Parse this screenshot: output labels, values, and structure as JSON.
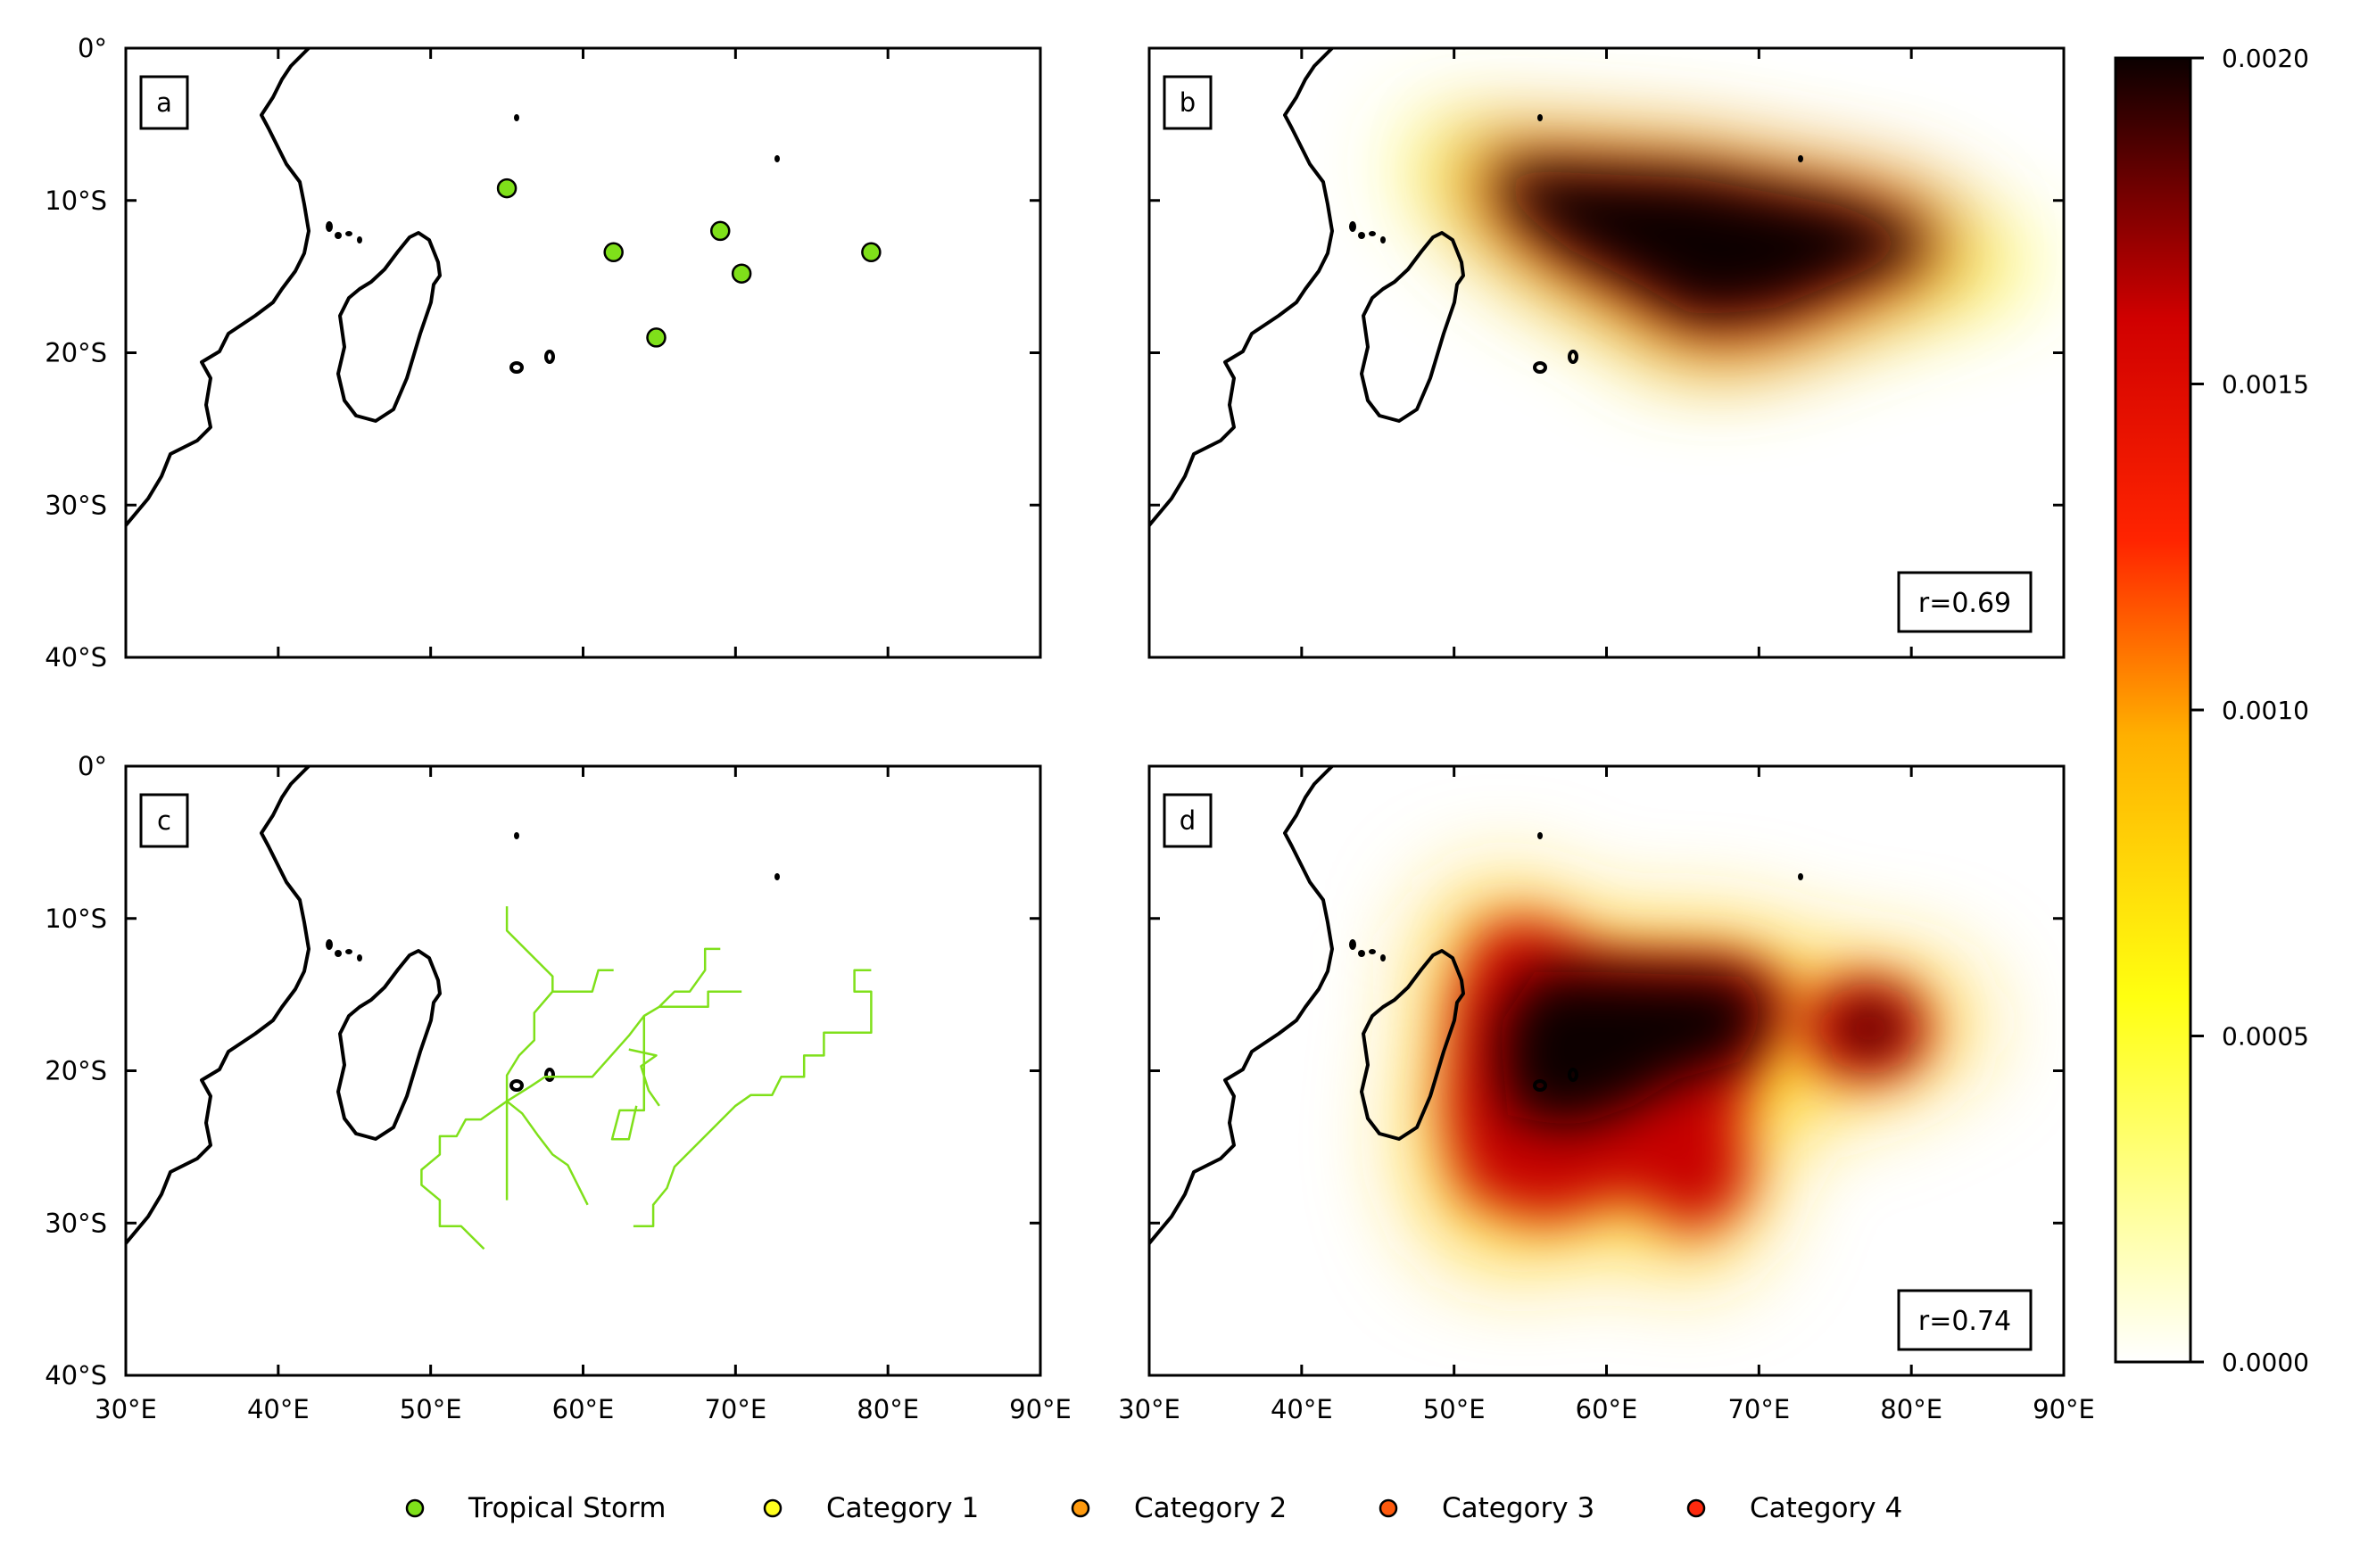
{
  "axes": {
    "lon_ticks": [
      "30°E",
      "40°E",
      "50°E",
      "60°E",
      "70°E",
      "80°E",
      "90°E"
    ],
    "lat_ticks": [
      "0°",
      "10°S",
      "20°S",
      "30°S",
      "40°S"
    ],
    "lon_range": [
      30,
      90
    ],
    "lat_range": [
      0,
      -40
    ]
  },
  "panels": {
    "a": {
      "label": "a"
    },
    "b": {
      "label": "b",
      "correlation": "r=0.69"
    },
    "c": {
      "label": "c"
    },
    "d": {
      "label": "d",
      "correlation": "r=0.74"
    }
  },
  "colorbar": {
    "ticks": [
      "0.0000",
      "0.0005",
      "0.0010",
      "0.0015",
      "0.0020"
    ],
    "range": [
      0,
      0.002
    ],
    "colormap": "hot_r"
  },
  "legend": {
    "items": [
      {
        "label": "Tropical Storm",
        "color": "#7fe01a"
      },
      {
        "label": "Category 1",
        "color": "#ffff1e"
      },
      {
        "label": "Category 2",
        "color": "#ff9a0e"
      },
      {
        "label": "Category 3",
        "color": "#ff5a0e"
      },
      {
        "label": "Category 4",
        "color": "#ff2a0e"
      }
    ]
  },
  "genesis_points": [
    {
      "lon": 55.0,
      "lat": -9.2
    },
    {
      "lon": 62.0,
      "lat": -13.4
    },
    {
      "lon": 69.0,
      "lat": -12.0
    },
    {
      "lon": 70.4,
      "lat": -14.8
    },
    {
      "lon": 78.9,
      "lat": -13.4
    },
    {
      "lon": 64.8,
      "lat": -19.0
    }
  ],
  "tracks": [
    [
      [
        55,
        -9.2
      ],
      [
        55,
        -10.8
      ],
      [
        56,
        -11.8
      ],
      [
        57,
        -12.8
      ],
      [
        58,
        -13.8
      ],
      [
        58,
        -14.8
      ],
      [
        59.5,
        -14.8
      ],
      [
        60.6,
        -14.8
      ],
      [
        61,
        -13.4
      ],
      [
        62,
        -13.4
      ]
    ],
    [
      [
        58,
        -14.8
      ],
      [
        56.8,
        -16.2
      ],
      [
        56.8,
        -18
      ],
      [
        55.8,
        -19
      ],
      [
        55,
        -20.3
      ],
      [
        55,
        -22
      ],
      [
        55,
        -24
      ],
      [
        55,
        -26
      ],
      [
        55,
        -28.5
      ]
    ],
    [
      [
        55,
        -22
      ],
      [
        53.3,
        -23.2
      ],
      [
        52.3,
        -23.2
      ],
      [
        51.7,
        -24.3
      ],
      [
        50.6,
        -24.3
      ],
      [
        50.6,
        -25.5
      ],
      [
        49.4,
        -26.5
      ],
      [
        49.4,
        -27.5
      ],
      [
        50.6,
        -28.5
      ],
      [
        50.6,
        -30.2
      ],
      [
        52,
        -30.2
      ],
      [
        53.5,
        -31.7
      ]
    ],
    [
      [
        55,
        -22
      ],
      [
        56,
        -22.8
      ],
      [
        57,
        -24.2
      ],
      [
        58,
        -25.5
      ],
      [
        59,
        -26.2
      ],
      [
        60.3,
        -28.8
      ]
    ],
    [
      [
        55,
        -22
      ],
      [
        56.6,
        -21
      ],
      [
        57.5,
        -20.4
      ],
      [
        60.6,
        -20.4
      ],
      [
        63,
        -17.7
      ],
      [
        64,
        -16.4
      ],
      [
        65,
        -15.8
      ],
      [
        66,
        -14.8
      ],
      [
        67,
        -14.8
      ],
      [
        68,
        -13.4
      ],
      [
        68,
        -12
      ],
      [
        69,
        -12
      ]
    ],
    [
      [
        64,
        -16.4
      ],
      [
        64,
        -18.6
      ],
      [
        64,
        -22.6
      ],
      [
        62.4,
        -22.6
      ],
      [
        61.9,
        -24.5
      ],
      [
        62.3,
        -24.5
      ],
      [
        63,
        -24.5
      ],
      [
        63.5,
        -22.3
      ]
    ],
    [
      [
        65,
        -15.8
      ],
      [
        68.2,
        -15.8
      ],
      [
        68.2,
        -14.8
      ],
      [
        70.4,
        -14.8
      ]
    ],
    [
      [
        63,
        -18.6
      ],
      [
        64.8,
        -19
      ],
      [
        63.8,
        -19.7
      ],
      [
        64.3,
        -21.3
      ],
      [
        65,
        -22.3
      ]
    ],
    [
      [
        63.3,
        -30.2
      ],
      [
        64.6,
        -30.2
      ],
      [
        64.6,
        -28.8
      ],
      [
        65.5,
        -27.7
      ],
      [
        66,
        -26.3
      ],
      [
        67,
        -25.3
      ],
      [
        68,
        -24.3
      ],
      [
        69,
        -23.3
      ],
      [
        70,
        -22.3
      ],
      [
        71,
        -21.6
      ],
      [
        72.4,
        -21.6
      ],
      [
        73,
        -20.4
      ],
      [
        74.5,
        -20.4
      ],
      [
        74.5,
        -19
      ],
      [
        75.8,
        -19
      ],
      [
        75.8,
        -17.5
      ],
      [
        78.9,
        -17.5
      ],
      [
        78.9,
        -14.8
      ],
      [
        77.8,
        -14.8
      ],
      [
        77.8,
        -13.4
      ],
      [
        78.9,
        -13.4
      ]
    ]
  ]
}
